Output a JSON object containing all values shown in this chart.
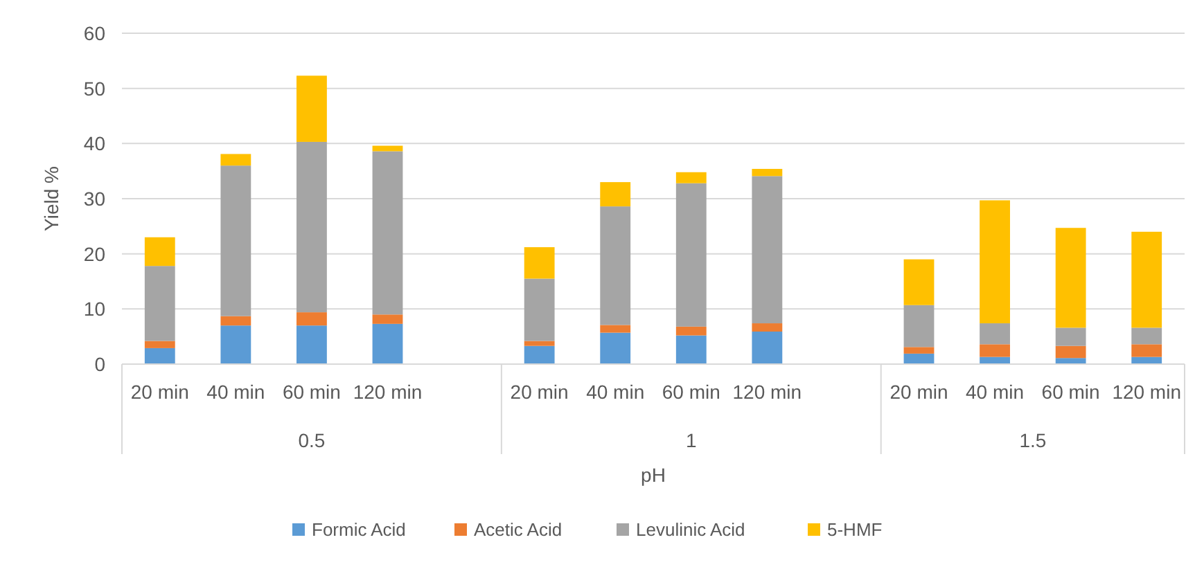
{
  "chart_data": {
    "type": "bar",
    "stacked": true,
    "xlabel": "pH",
    "ylabel": "Yield %",
    "categories": [
      "20 min",
      "40 min",
      "60 min",
      "120 min",
      null,
      "20 min",
      "40 min",
      "60 min",
      "120 min",
      null,
      "20 min",
      "40 min",
      "60 min",
      "120 min"
    ],
    "annotations": [
      "0.5",
      "1",
      "1.5"
    ],
    "series": [
      {
        "name": "Formic Acid",
        "color": "#5b9bd5",
        "values": [
          2.9,
          7.0,
          7.0,
          7.3,
          null,
          3.3,
          5.7,
          5.2,
          5.9,
          null,
          1.9,
          1.3,
          1.1,
          1.3
        ]
      },
      {
        "name": "Acetic Acid",
        "color": "#ed7d31",
        "values": [
          1.3,
          1.7,
          2.4,
          1.7,
          null,
          0.9,
          1.4,
          1.6,
          1.5,
          null,
          1.2,
          2.3,
          2.2,
          2.3
        ]
      },
      {
        "name": "Levulinic Acid",
        "color": "#a5a5a5",
        "values": [
          13.6,
          27.3,
          30.9,
          29.6,
          null,
          11.3,
          21.5,
          26.0,
          26.7,
          null,
          7.6,
          3.8,
          3.3,
          3.0
        ]
      },
      {
        "name": "5-HMF",
        "color": "#ffc000",
        "values": [
          5.2,
          2.1,
          12.0,
          1.0,
          null,
          5.7,
          4.4,
          2.0,
          1.3,
          null,
          8.3,
          22.3,
          18.1,
          17.4
        ]
      }
    ],
    "ylim": [
      0,
      60
    ],
    "yticks": [
      0,
      10,
      20,
      30,
      40,
      50,
      60
    ],
    "grid": "y",
    "legend": "bottom"
  }
}
